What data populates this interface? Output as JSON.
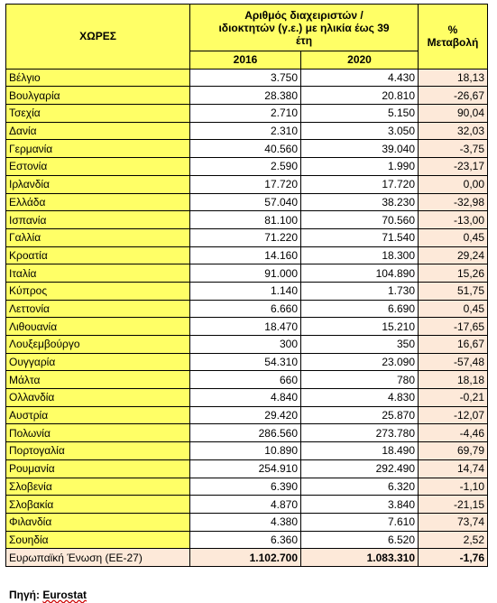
{
  "table": {
    "header": {
      "country": "ΧΩΡΕΣ",
      "group": "Αριθμός διαχειριστών / ιδιοκτητών (γ.ε.) με ηλικία έως 39 έτη",
      "change": "% Μεταβολή",
      "year1": "2016",
      "year2": "2020"
    },
    "rows": [
      [
        "Βέλγιο",
        "3.750",
        "4.430",
        "18,13"
      ],
      [
        "Βουλγαρία",
        "28.380",
        "20.810",
        "-26,67"
      ],
      [
        "Τσεχία",
        "2.710",
        "5.150",
        "90,04"
      ],
      [
        "Δανία",
        "2.310",
        "3.050",
        "32,03"
      ],
      [
        "Γερμανία",
        "40.560",
        "39.040",
        "-3,75"
      ],
      [
        "Εστονία",
        "2.590",
        "1.990",
        "-23,17"
      ],
      [
        "Ιρλανδία",
        "17.720",
        "17.720",
        "0,00"
      ],
      [
        "Ελλάδα",
        "57.040",
        "38.230",
        "-32,98"
      ],
      [
        "Ισπανία",
        "81.100",
        "70.560",
        "-13,00"
      ],
      [
        "Γαλλία",
        "71.220",
        "71.540",
        "0,45"
      ],
      [
        "Κροατία",
        "14.160",
        "18.300",
        "29,24"
      ],
      [
        "Ιταλία",
        "91.000",
        "104.890",
        "15,26"
      ],
      [
        "Κύπρος",
        "1.140",
        "1.730",
        "51,75"
      ],
      [
        "Λεττονία",
        "6.660",
        "6.690",
        "0,45"
      ],
      [
        "Λιθουανία",
        "18.470",
        "15.210",
        "-17,65"
      ],
      [
        "Λουξεμβούργο",
        "300",
        "350",
        "16,67"
      ],
      [
        "Ουγγαρία",
        "54.310",
        "23.090",
        "-57,48"
      ],
      [
        "Μάλτα",
        "660",
        "780",
        "18,18"
      ],
      [
        "Ολλανδία",
        "4.840",
        "4.830",
        "-0,21"
      ],
      [
        "Αυστρία",
        "29.420",
        "25.870",
        "-12,07"
      ],
      [
        "Πολωνία",
        "286.560",
        "273.780",
        "-4,46"
      ],
      [
        "Πορτογαλία",
        "10.890",
        "18.490",
        "69,79"
      ],
      [
        "Ρουμανία",
        "254.910",
        "292.490",
        "14,74"
      ],
      [
        "Σλοβενία",
        "6.390",
        "6.320",
        "-1,10"
      ],
      [
        "Σλοβακία",
        "4.870",
        "3.840",
        "-21,15"
      ],
      [
        "Φιλανδία",
        "4.380",
        "7.610",
        "73,74"
      ],
      [
        "Σουηδία",
        "6.360",
        "6.520",
        "2,52"
      ]
    ],
    "total": [
      "Ευρωπαϊκή Ένωση (ΕΕ-27)",
      "1.102.700",
      "1.083.310",
      "-1,76"
    ]
  },
  "source": {
    "label": "Πηγή:",
    "name": "Eurostat"
  }
}
